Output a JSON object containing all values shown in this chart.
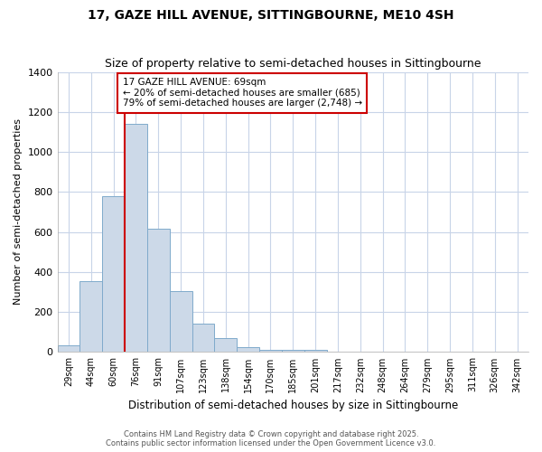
{
  "title": "17, GAZE HILL AVENUE, SITTINGBOURNE, ME10 4SH",
  "subtitle": "Size of property relative to semi-detached houses in Sittingbourne",
  "xlabel": "Distribution of semi-detached houses by size in Sittingbourne",
  "ylabel": "Number of semi-detached properties",
  "bin_labels": [
    "29sqm",
    "44sqm",
    "60sqm",
    "76sqm",
    "91sqm",
    "107sqm",
    "123sqm",
    "138sqm",
    "154sqm",
    "170sqm",
    "185sqm",
    "201sqm",
    "217sqm",
    "232sqm",
    "248sqm",
    "264sqm",
    "279sqm",
    "295sqm",
    "311sqm",
    "326sqm",
    "342sqm"
  ],
  "bar_values": [
    35,
    355,
    780,
    1140,
    615,
    305,
    140,
    70,
    25,
    10,
    13,
    12,
    0,
    0,
    0,
    0,
    0,
    0,
    0,
    0,
    0
  ],
  "bar_color": "#ccd9e8",
  "bar_edge_color": "#7faacb",
  "ylim": [
    0,
    1400
  ],
  "property_size": 69,
  "property_label": "17 GAZE HILL AVENUE: 69sqm",
  "annotation_line1": "← 20% of semi-detached houses are smaller (685)",
  "annotation_line2": "79% of semi-detached houses are larger (2,748) →",
  "vline_color": "#cc0000",
  "annotation_box_color": "#ffffff",
  "annotation_box_edge": "#cc0000",
  "footer_line1": "Contains HM Land Registry data © Crown copyright and database right 2025.",
  "footer_line2": "Contains public sector information licensed under the Open Government Licence v3.0.",
  "bg_color": "#ffffff",
  "grid_color": "#c8d4e8"
}
